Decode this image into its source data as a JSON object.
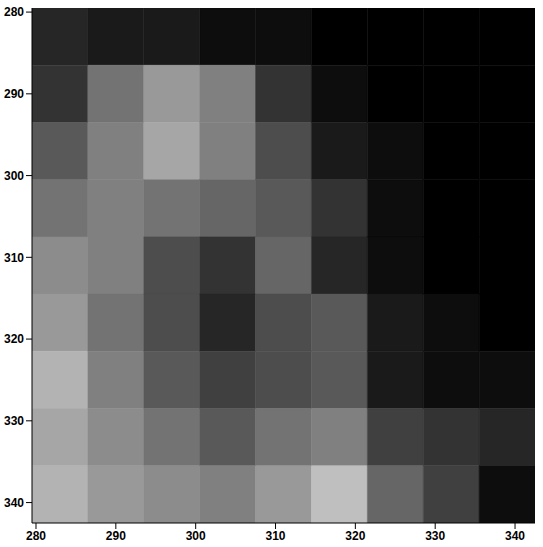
{
  "chart_data": {
    "type": "heatmap",
    "xlim": [
      279.5,
      342.5
    ],
    "ylim": [
      279.5,
      342.5
    ],
    "xticks": [
      280,
      290,
      300,
      310,
      320,
      330,
      340
    ],
    "yticks": [
      280,
      290,
      300,
      310,
      320,
      330,
      340
    ],
    "x_bins": [
      279.5,
      286.5,
      293.5,
      300.5,
      307.5,
      314.5,
      321.5,
      328.5,
      335.5,
      342.5
    ],
    "y_bins": [
      279.5,
      286.5,
      293.5,
      300.5,
      307.5,
      314.5,
      321.5,
      328.5,
      335.5,
      342.5
    ],
    "cells": [
      [
        0.15,
        0.1,
        0.1,
        0.05,
        0.05,
        0,
        0,
        0,
        0
      ],
      [
        0.2,
        0.45,
        0.6,
        0.5,
        0.2,
        0.05,
        0,
        0,
        0
      ],
      [
        0.35,
        0.5,
        0.65,
        0.5,
        0.3,
        0.1,
        0.05,
        0,
        0
      ],
      [
        0.45,
        0.5,
        0.45,
        0.4,
        0.35,
        0.2,
        0.05,
        0,
        0
      ],
      [
        0.55,
        0.5,
        0.3,
        0.2,
        0.4,
        0.15,
        0.05,
        0,
        0
      ],
      [
        0.6,
        0.45,
        0.3,
        0.15,
        0.3,
        0.35,
        0.1,
        0.05,
        0
      ],
      [
        0.7,
        0.5,
        0.35,
        0.25,
        0.3,
        0.35,
        0.1,
        0.05,
        0.05
      ],
      [
        0.65,
        0.55,
        0.45,
        0.35,
        0.45,
        0.5,
        0.25,
        0.2,
        0.15
      ],
      [
        0.7,
        0.6,
        0.55,
        0.5,
        0.6,
        0.75,
        0.4,
        0.25,
        0.05
      ]
    ],
    "color_range": [
      0,
      1
    ],
    "grid": false
  }
}
